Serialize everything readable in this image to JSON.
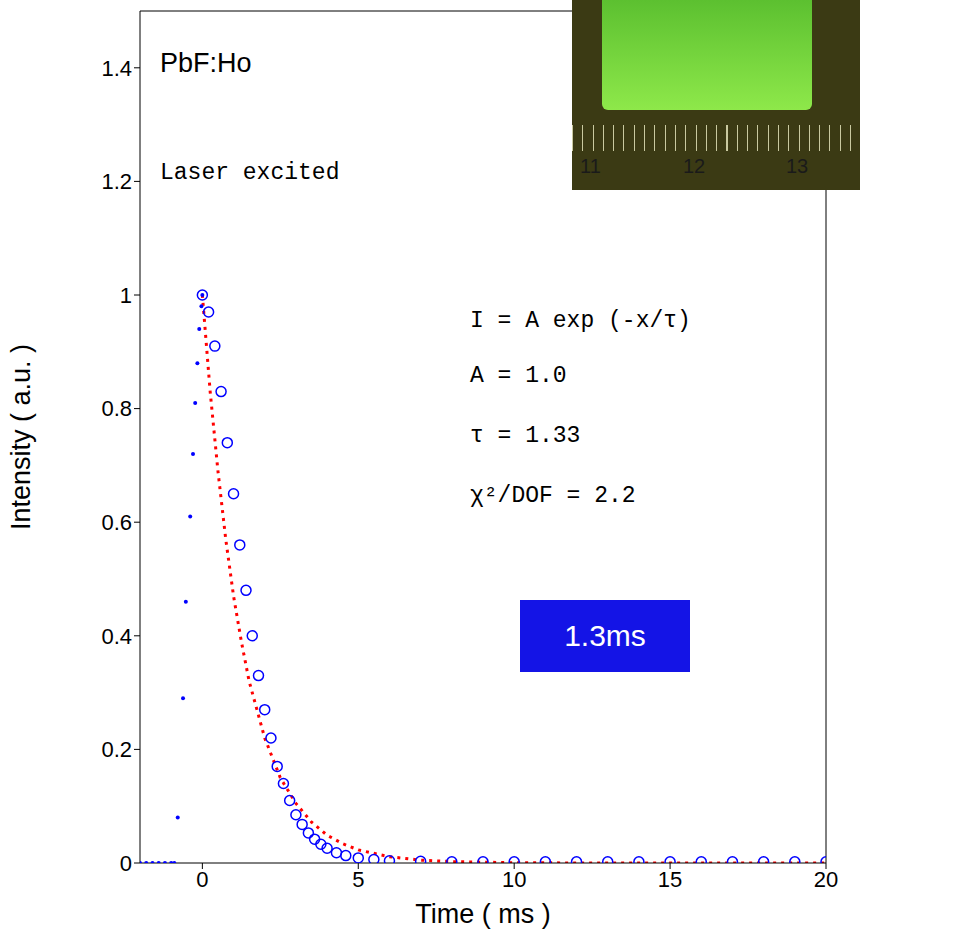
{
  "chart_data": {
    "type": "scatter",
    "x_label": "Time ( ms )",
    "y_label": "Intensity ( a.u. )",
    "xlim": [
      -2,
      20
    ],
    "xticks": [
      0,
      5,
      10,
      15,
      20
    ],
    "ylim": [
      0,
      1.5
    ],
    "yticks": [
      0,
      0.2,
      0.4,
      0.6,
      0.8,
      1,
      1.2,
      1.4
    ],
    "grid": false,
    "annotations": [
      "PbF:Ho",
      "Laser excited",
      "I = A exp (-x/τ)",
      "A = 1.0",
      "τ = 1.33",
      "χ²/DOF = 2.2",
      "1.3ms"
    ],
    "inset": {
      "ruler_labels": [
        11,
        12,
        13
      ]
    },
    "series": [
      {
        "type": "scatter",
        "marker": "dot",
        "color": "#0000ff",
        "x": [
          -2,
          -1.8,
          -1.6,
          -1.4,
          -1.2,
          -1.0,
          -0.9,
          -0.79,
          -0.62,
          -0.53,
          -0.39,
          -0.3,
          -0.23,
          -0.16,
          -0.1,
          -0.03,
          0.0
        ],
        "values": [
          0,
          0,
          0,
          0,
          0,
          0,
          0,
          0.08,
          0.29,
          0.46,
          0.61,
          0.72,
          0.81,
          0.88,
          0.94,
          0.98,
          1.0
        ]
      },
      {
        "type": "scatter",
        "marker": "circle",
        "color": "#0000ff",
        "x": [
          0,
          0.2,
          0.4,
          0.6,
          0.8,
          1.0,
          1.2,
          1.4,
          1.6,
          1.8,
          2.0,
          2.2,
          2.4,
          2.6,
          2.8,
          3.0,
          3.2,
          3.4,
          3.6,
          3.8,
          4.0,
          4.3,
          4.6,
          5.0,
          5.5,
          6,
          7,
          8,
          9,
          10,
          11,
          12,
          13,
          14,
          15,
          16,
          17,
          18,
          19,
          20
        ],
        "values": [
          1.0,
          0.97,
          0.91,
          0.83,
          0.74,
          0.65,
          0.56,
          0.48,
          0.4,
          0.33,
          0.27,
          0.22,
          0.17,
          0.14,
          0.11,
          0.085,
          0.068,
          0.053,
          0.042,
          0.033,
          0.026,
          0.018,
          0.013,
          0.009,
          0.006,
          0.004,
          0.003,
          0.002,
          0.002,
          0.002,
          0.002,
          0.002,
          0.002,
          0.002,
          0.002,
          0.002,
          0.002,
          0.002,
          0.002,
          0.002
        ]
      },
      {
        "type": "line",
        "line_style": "dotted",
        "color": "#ff0000",
        "x": [
          0,
          0.25,
          0.5,
          0.75,
          1,
          1.25,
          1.5,
          1.75,
          2,
          2.5,
          3,
          3.5,
          4,
          4.5,
          5,
          6,
          7,
          8,
          10,
          12,
          15,
          20
        ],
        "values": [
          1.0,
          0.83,
          0.69,
          0.57,
          0.47,
          0.39,
          0.32,
          0.27,
          0.22,
          0.15,
          0.105,
          0.072,
          0.049,
          0.034,
          0.023,
          0.011,
          0.005,
          0.0024,
          0.0005,
          0.0001,
          0,
          0
        ]
      }
    ]
  }
}
